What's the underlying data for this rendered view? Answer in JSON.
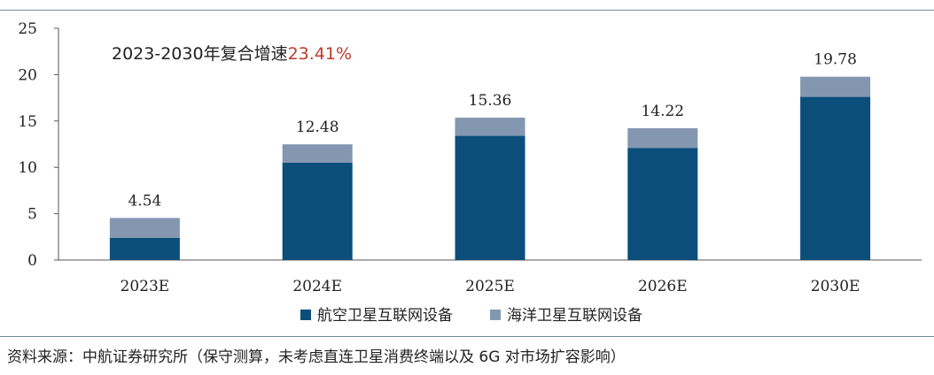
{
  "chart_data": {
    "type": "bar",
    "stacked": true,
    "categories": [
      "2023E",
      "2024E",
      "2025E",
      "2026E",
      "2030E"
    ],
    "series": [
      {
        "name": "航空卫星互联网设备",
        "color": "#0b4e7a",
        "values": [
          2.4,
          10.5,
          13.4,
          12.1,
          17.6
        ]
      },
      {
        "name": "海洋卫星互联网设备",
        "color": "#8497b0",
        "values": [
          2.14,
          1.98,
          1.96,
          2.12,
          2.18
        ]
      }
    ],
    "totals": [
      "4.54",
      "12.48",
      "15.36",
      "14.22",
      "19.78"
    ],
    "yticks": [
      "0",
      "5",
      "10",
      "15",
      "20",
      "25"
    ],
    "ylim": [
      0,
      25
    ],
    "legend_position": "bottom-center",
    "annotation": {
      "text": "2023-2030年复合增速",
      "highlight": "23.41%",
      "highlight_color": "#c0392b"
    }
  },
  "source_note": "资料来源：中航证券研究所（保守测算，未考虑直连卫星消费终端以及 6G 对市场扩容影响）"
}
